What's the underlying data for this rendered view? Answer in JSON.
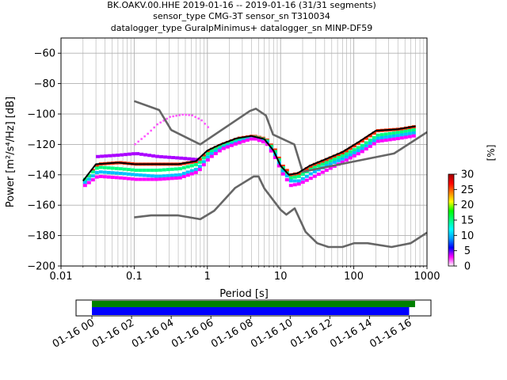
{
  "chart_data": [
    {
      "type": "heatmap",
      "title": [
        "BK.OAKV.00.HHE   2019-01-16 -- 2019-01-16  (31/31 segments)",
        "sensor_type CMG-3T sensor_sn T310034",
        "datalogger_type GuralpMinimus+ datalogger_sn MINP-DF59"
      ],
      "xlabel": "Period [s]",
      "ylabel": "Power [m²/s⁴/Hz] [dB]",
      "x_scale": "log",
      "xlim": [
        0.01,
        1000
      ],
      "ylim": [
        -200,
        -50
      ],
      "x_ticks": [
        0.01,
        0.1,
        1,
        10,
        100,
        1000
      ],
      "x_tick_labels": [
        "0.01",
        "0.1",
        "1",
        "10",
        "100",
        "1000"
      ],
      "y_ticks": [
        -200,
        -180,
        -160,
        -140,
        -120,
        -100,
        -80,
        -60
      ],
      "y_tick_labels": [
        "−200",
        "−180",
        "−160",
        "−140",
        "−120",
        "−100",
        "−80",
        "−60"
      ],
      "grid": true,
      "colorbar": {
        "label": "[%]",
        "range": [
          0,
          30
        ],
        "ticks": [
          0,
          5,
          10,
          15,
          20,
          25,
          30
        ],
        "tick_labels": [
          "0",
          "5",
          "10",
          "15",
          "20",
          "25",
          "30"
        ],
        "colors": [
          "#ffffff",
          "#ff00ff",
          "#0000ff",
          "#00a0ff",
          "#00ffff",
          "#00ff80",
          "#00ff00",
          "#ffff00",
          "#ff8000",
          "#ff0000",
          "#a00000"
        ]
      },
      "series": [
        {
          "style": "noise-model-high",
          "color": "#666666",
          "x": [
            0.1,
            0.22,
            0.32,
            0.8,
            3.8,
            4.6,
            6.3,
            7.9,
            15.4,
            20,
            354.8,
            1000
          ],
          "y": [
            -91.5,
            -97.4,
            -110.5,
            -120,
            -98,
            -96.5,
            -101,
            -113.5,
            -120,
            -138,
            -126,
            -112
          ]
        },
        {
          "style": "noise-model-low",
          "color": "#666666",
          "x": [
            0.1,
            0.17,
            0.4,
            0.8,
            1.24,
            2.4,
            4.3,
            5,
            6,
            10,
            12,
            15.6,
            21.9,
            31.6,
            45,
            70,
            101,
            154,
            328,
            600,
            1000
          ],
          "y": [
            -168,
            -166.7,
            -166.7,
            -169.2,
            -163.7,
            -148.6,
            -141.1,
            -141.1,
            -149,
            -163,
            -166.2,
            -162.1,
            -177.5,
            -185,
            -187.5,
            -187.5,
            -185,
            -185,
            -187.5,
            -185,
            -178
          ]
        },
        {
          "style": "mode",
          "color": "#000000",
          "x": [
            0.02,
            0.03,
            0.06,
            0.1,
            0.2,
            0.4,
            0.7,
            1.0,
            1.5,
            2.5,
            4,
            6,
            8,
            10,
            13,
            17,
            25,
            40,
            70,
            120,
            200,
            400,
            700
          ],
          "y": [
            -144,
            -133,
            -132,
            -133,
            -133,
            -133,
            -131,
            -124,
            -120,
            -116,
            -114.5,
            -116.5,
            -124,
            -134,
            -140,
            -139,
            -134,
            -130,
            -125,
            -118,
            -111,
            -110,
            -108
          ]
        }
      ],
      "psd_cloud": [
        {
          "x": [
            0.02,
            0.03,
            0.06,
            0.1,
            0.2,
            0.4,
            0.7,
            1.0,
            1.5,
            2.5,
            4,
            6,
            8,
            10,
            13,
            17,
            25,
            40,
            70,
            120,
            200,
            400,
            700
          ],
          "y": [
            -144,
            -133,
            -132,
            -133,
            -133,
            -133,
            -131,
            -124,
            -120,
            -116,
            -114.5,
            -116.5,
            -124,
            -134,
            -140,
            -139,
            -134,
            -130,
            -125,
            -118,
            -111,
            -110,
            -108
          ],
          "percent": 26
        },
        {
          "x": [
            0.02,
            0.03,
            0.06,
            0.1,
            0.2,
            0.4,
            0.7,
            1.0,
            1.5,
            2.5,
            4,
            6,
            8,
            10,
            13,
            17,
            25,
            40,
            70,
            120,
            200,
            400,
            700
          ],
          "y": [
            -143,
            -135,
            -136,
            -137,
            -137,
            -136,
            -133,
            -125,
            -121,
            -117,
            -115,
            -117,
            -125,
            -135,
            -142,
            -141,
            -136,
            -132,
            -127,
            -121,
            -114,
            -112,
            -110
          ],
          "percent": 15
        },
        {
          "x": [
            0.02,
            0.03,
            0.06,
            0.1,
            0.2,
            0.4,
            0.7,
            1.0,
            1.5,
            2.5,
            4,
            6,
            8,
            10,
            13,
            17,
            25,
            40,
            70,
            120,
            200,
            400,
            700
          ],
          "y": [
            -145,
            -138,
            -139,
            -140,
            -141,
            -140,
            -136,
            -127,
            -122,
            -118,
            -115.5,
            -118,
            -127,
            -137,
            -144,
            -144,
            -139,
            -134,
            -129,
            -123,
            -116,
            -114,
            -112
          ],
          "percent": 10
        },
        {
          "x": [
            0.03,
            0.06,
            0.1,
            0.2,
            0.4,
            0.7
          ],
          "y": [
            -128,
            -127,
            -126,
            -128,
            -129,
            -130
          ],
          "percent": 4
        },
        {
          "x": [
            0.02,
            0.03,
            0.06,
            0.1,
            0.2,
            0.4,
            0.7,
            1.0,
            1.5,
            2.5,
            4,
            6,
            8,
            10,
            13,
            17,
            25,
            40,
            70,
            120,
            200,
            400,
            700
          ],
          "y": [
            -147,
            -141,
            -142,
            -143,
            -143,
            -142,
            -138,
            -129,
            -123,
            -119,
            -116,
            -119,
            -129,
            -139,
            -147,
            -146,
            -142,
            -137,
            -131,
            -125,
            -118,
            -116,
            -114
          ],
          "percent": 3
        }
      ],
      "psd_outlier": {
        "x": [
          0.1,
          0.15,
          0.2,
          0.3,
          0.45,
          0.6,
          0.8,
          1.0
        ],
        "y": [
          -120,
          -113,
          -107,
          -102,
          -100.5,
          -101,
          -104,
          -109
        ],
        "percent": 2
      }
    },
    {
      "type": "timeline",
      "x_tick_labels": [
        "01-16 00",
        "01-16 02",
        "01-16 04",
        "01-16 06",
        "01-16 08",
        "01-16 10",
        "01-16 12",
        "01-16 14",
        "01-16 16"
      ],
      "x_ticks_hours": [
        0,
        2,
        4,
        6,
        8,
        10,
        12,
        14,
        16
      ],
      "xlim_hours": [
        -0.8,
        17.1
      ],
      "series": [
        {
          "color": "#008000",
          "start_hours": 0,
          "end_hours": 16.3
        },
        {
          "color": "#0000ff",
          "start_hours": 0,
          "end_hours": 16.0
        }
      ]
    }
  ]
}
